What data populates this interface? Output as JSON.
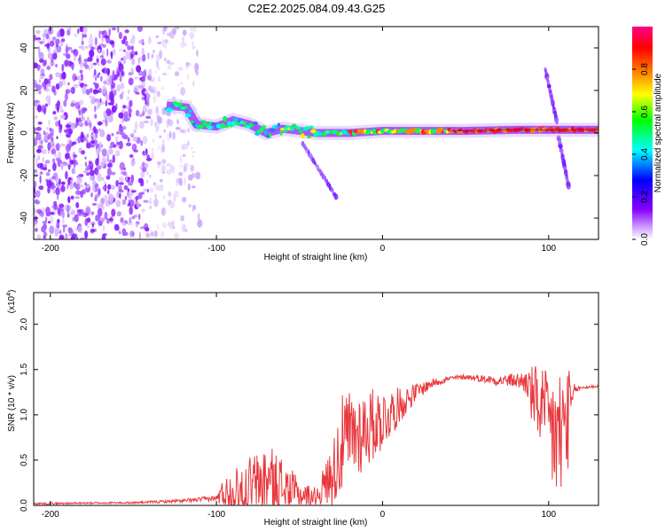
{
  "title": "C2E2.2025.084.09.43.G25",
  "chart_data": [
    {
      "type": "heatmap",
      "name": "spectrogram",
      "title": "C2E2.2025.084.09.43.G25",
      "xlabel": "Height of straight line (km)",
      "ylabel": "Frequency (Hz)",
      "xlim": [
        -210,
        130
      ],
      "ylim": [
        -50,
        50
      ],
      "x_ticks": [
        -200,
        -100,
        0,
        100
      ],
      "y_ticks": [
        -40,
        -20,
        0,
        20,
        40
      ],
      "colorbar": {
        "label": "Normalized spectral amplitude",
        "range": [
          0,
          1
        ],
        "ticks": [
          "0.0",
          "0.2",
          "0.4",
          "0.6",
          "0.8"
        ],
        "colors": [
          "#ffffff",
          "#8800ff",
          "#0000ff",
          "#00ffff",
          "#00ff00",
          "#ffff00",
          "#ff8800",
          "#ff0000",
          "#ff0088"
        ]
      },
      "ridge": [
        {
          "x": -130,
          "y": 13
        },
        {
          "x": -118,
          "y": 12
        },
        {
          "x": -112,
          "y": 4
        },
        {
          "x": -100,
          "y": 3
        },
        {
          "x": -90,
          "y": 6
        },
        {
          "x": -80,
          "y": 4
        },
        {
          "x": -70,
          "y": 0
        },
        {
          "x": -60,
          "y": 2
        },
        {
          "x": -50,
          "y": 1
        },
        {
          "x": -40,
          "y": 0
        },
        {
          "x": -20,
          "y": 0
        },
        {
          "x": 0,
          "y": 1
        },
        {
          "x": 20,
          "y": 1
        },
        {
          "x": 50,
          "y": 1
        },
        {
          "x": 80,
          "y": 1.5
        },
        {
          "x": 110,
          "y": 1.5
        },
        {
          "x": 130,
          "y": 1.5
        }
      ],
      "branches": [
        {
          "name": "down-left",
          "points": [
            {
              "x": -48,
              "y": -5
            },
            {
              "x": -28,
              "y": -30
            }
          ]
        },
        {
          "name": "up-right",
          "points": [
            {
              "x": 98,
              "y": 30
            },
            {
              "x": 105,
              "y": 5
            }
          ]
        },
        {
          "name": "down-right",
          "points": [
            {
              "x": 106,
              "y": -2
            },
            {
              "x": 112,
              "y": -25
            }
          ]
        }
      ],
      "noise_region": {
        "x": [
          -210,
          -110
        ],
        "y": [
          -50,
          50
        ]
      }
    },
    {
      "type": "line",
      "name": "snr",
      "xlabel": "Height of straight line (km)",
      "ylabel": "SNR (10 * v/v)",
      "y_multiplier": "(x10",
      "y_multiplier_exp": "4",
      "xlim": [
        -210,
        130
      ],
      "ylim": [
        0,
        2.35
      ],
      "x_ticks": [
        -200,
        -100,
        0,
        100
      ],
      "y_ticks": [
        "0.0",
        "0.5",
        "1.0",
        "1.5",
        "2.0"
      ],
      "color": "#e8383d",
      "envelope": {
        "x": [
          -210,
          -150,
          -120,
          -100,
          -97,
          -80,
          -70,
          -60,
          -50,
          -40,
          -30,
          -25,
          -20,
          -10,
          0,
          10,
          20,
          30,
          40,
          50,
          60,
          70,
          80,
          87,
          90,
          95,
          100,
          103,
          106,
          108,
          110,
          113,
          116,
          120,
          130
        ],
        "base": [
          0.02,
          0.03,
          0.05,
          0.08,
          0.12,
          0.22,
          0.28,
          0.2,
          0.12,
          0.1,
          0.35,
          0.65,
          0.75,
          0.85,
          0.95,
          1.1,
          1.25,
          1.35,
          1.4,
          1.42,
          1.4,
          1.38,
          1.38,
          1.36,
          1.2,
          1.1,
          0.9,
          0.8,
          0.7,
          0.8,
          0.9,
          1.05,
          1.28,
          1.3,
          1.32
        ],
        "jitter": [
          0.01,
          0.01,
          0.02,
          0.03,
          0.15,
          0.35,
          0.4,
          0.35,
          0.15,
          0.1,
          0.35,
          0.55,
          0.55,
          0.45,
          0.35,
          0.2,
          0.1,
          0.05,
          0.03,
          0.03,
          0.04,
          0.06,
          0.08,
          0.15,
          0.35,
          0.45,
          0.55,
          0.8,
          0.8,
          0.9,
          0.8,
          0.4,
          0.04,
          0.02,
          0.02
        ]
      }
    }
  ]
}
